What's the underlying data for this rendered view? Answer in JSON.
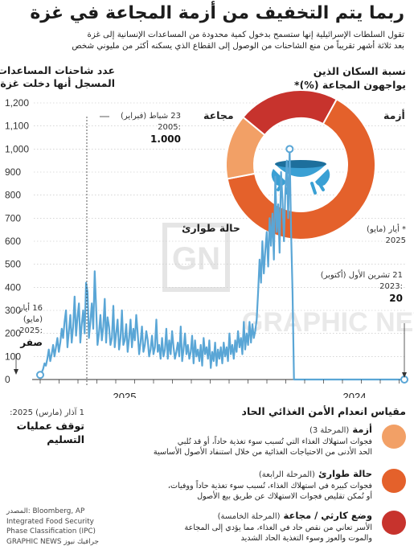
{
  "title": "ربما يتم التخفيف من أزمة المجاعة في غزة",
  "subtitle_lines": [
    "تقول السلطات الإسرائيلية إنها ستسمح بدخول كمية محدودة من المساعدات الإنسانية إلى غزة",
    "بعد ثلاثة أشهر تقريباً من منع الشاحنات من الوصول إلى القطاع الذي يسكنه أكثر من مليوني شخص"
  ],
  "chart_title_lines": [
    "عدد شاحنات المساعدات",
    "المسجل أنها دخلت غزة"
  ],
  "donut": {
    "title_lines": [
      "نسبة السكان الذين",
      "يواجهون المجاعة (%)*"
    ],
    "labels": {
      "crisis": "أزمة",
      "famine": "مجاعة",
      "emergency": "حالة طوارئ"
    },
    "date_lines": [
      "* أيار (مايو)",
      "2025"
    ],
    "segments": [
      {
        "key": "famine",
        "label": "مجاعة",
        "percent": 22,
        "color": "#c7332d"
      },
      {
        "key": "emergency",
        "label": "حالة طوارئ",
        "percent": 64,
        "color": "#e4612b"
      },
      {
        "key": "crisis",
        "label": "أزمة",
        "percent": 14,
        "color": "#f2a066"
      }
    ]
  },
  "annotations": {
    "peak": {
      "lines": [
        "23 شباط (فبراير)",
        ":2005"
      ],
      "value": "1.000"
    },
    "zero": {
      "lines": [
        "16 أيار",
        "(مايو)",
        ":2025"
      ],
      "value": "صفر"
    },
    "oct": {
      "lines": [
        "21 تشرين الأول (أكتوبر)",
        ":2023"
      ],
      "value": "20"
    },
    "stop": {
      "lines": [
        "1 آذار (مارس) 2025:"
      ],
      "bold_lines": [
        "توقف عمليات",
        "التسليم"
      ]
    }
  },
  "scale": {
    "title": "مقياس انعدام الأمن الغذائي الحاد",
    "levels": [
      {
        "name": "أزمة",
        "phase": "(المرحلة 3)",
        "color": "#f2a066",
        "desc_lines": [
          "فجوات استهلاك الغذاء التي تُسبب سوء تغذية حاداً، أو قد تُلبي",
          "الحد الأدنى من الاحتياجات الغذائية من خلال استنفاد الأصول الأساسية"
        ]
      },
      {
        "name": "حالة طوارئ",
        "phase": "(المرحلة الرابعة)",
        "color": "#e4612b",
        "desc_lines": [
          "فجوات كبيرة في استهلاك الغذاء، تُسبب سوء تغذية حاداً ووفيات،",
          "أو تُمكن تقليص فجوات الاستهلاك عن طريق بيع الأصول"
        ]
      },
      {
        "name": "وضع كارثي / مجاعة",
        "phase": "(المرحلة الخامسة)",
        "color": "#c7332d",
        "desc_lines": [
          "الأسر تعاني من نقص حاد في الغذاء، مما يؤدي إلى المجاعة",
          "والموت والعوز وسوء التغذية الحاد الشديد"
        ]
      }
    ]
  },
  "source_lines": [
    "المصدر: Bloomberg, AP",
    "Integrated Food Security",
    "Phase Classification (IPC)",
    "GRAPHIC NEWS جرافيك نيوز"
  ],
  "watermark": "GRAPHIC NEWS",
  "chart_data": {
    "type": "line",
    "title": "عدد شاحنات المساعدات المسجل أنها دخلت غزة",
    "x_axis": "time (Oct 2023 – May 2025)",
    "x_tick_labels": [
      "2025",
      "2024"
    ],
    "y_ticks": [
      0,
      100,
      200,
      300,
      400,
      500,
      600,
      700,
      800,
      900,
      1000,
      1100,
      1200
    ],
    "y_tick_labels": [
      "0",
      "100",
      "200",
      "300",
      "400",
      "500",
      "600",
      "700",
      "800",
      "900",
      "1,000",
      "1,100",
      "1,200"
    ],
    "ylim": [
      0,
      1200
    ],
    "grid": true,
    "accent_color": "#5aa6d6",
    "values_newest_first": [
      0,
      0,
      0,
      0,
      0,
      0,
      0,
      0,
      0,
      0,
      0,
      0,
      0,
      0,
      0,
      0,
      0,
      0,
      0,
      0,
      0,
      0,
      0,
      0,
      0,
      0,
      0,
      0,
      0,
      0,
      0,
      0,
      0,
      0,
      0,
      0,
      0,
      0,
      0,
      0,
      0,
      0,
      0,
      0,
      0,
      0,
      0,
      0,
      0,
      0,
      0,
      0,
      0,
      0,
      0,
      0,
      0,
      0,
      0,
      0,
      0,
      0,
      0,
      0,
      0,
      0,
      0,
      0,
      0,
      0,
      0,
      0,
      0,
      0,
      0,
      0,
      0,
      0,
      380,
      640,
      1000,
      700,
      950,
      820,
      600,
      780,
      900,
      550,
      760,
      640,
      880,
      520,
      720,
      580,
      700,
      490,
      640,
      560,
      460,
      600,
      420,
      520,
      380,
      260,
      210,
      180,
      240,
      160,
      250,
      150,
      200,
      130,
      250,
      110,
      180,
      140,
      210,
      120,
      170,
      90,
      150,
      110,
      200,
      80,
      140,
      100,
      160,
      70,
      140,
      90,
      130,
      60,
      160,
      80,
      120,
      50,
      170,
      90,
      140,
      110,
      180,
      60,
      150,
      80,
      130,
      100,
      170,
      70,
      190,
      120,
      90,
      150,
      110,
      200,
      130,
      80,
      230,
      100,
      160,
      120,
      90,
      140,
      210,
      110,
      170,
      90,
      220,
      130,
      100,
      180,
      90,
      150,
      120,
      260,
      140,
      110,
      190,
      130,
      100,
      170,
      210,
      150,
      120,
      230,
      160,
      110,
      200,
      280,
      170,
      220,
      140,
      260,
      180,
      120,
      240,
      170,
      150,
      300,
      180,
      130,
      260,
      200,
      140,
      320,
      180,
      150,
      230,
      270,
      160,
      350,
      230,
      170,
      280,
      200,
      150,
      310,
      470,
      220,
      330,
      250,
      180,
      380,
      420,
      200,
      300,
      240,
      160,
      330,
      270,
      190,
      360,
      230,
      160,
      280,
      210,
      140,
      300,
      250,
      180,
      220,
      160,
      120,
      180,
      140,
      100,
      150,
      110,
      80,
      130,
      90,
      60,
      70,
      45,
      30,
      20
    ]
  }
}
